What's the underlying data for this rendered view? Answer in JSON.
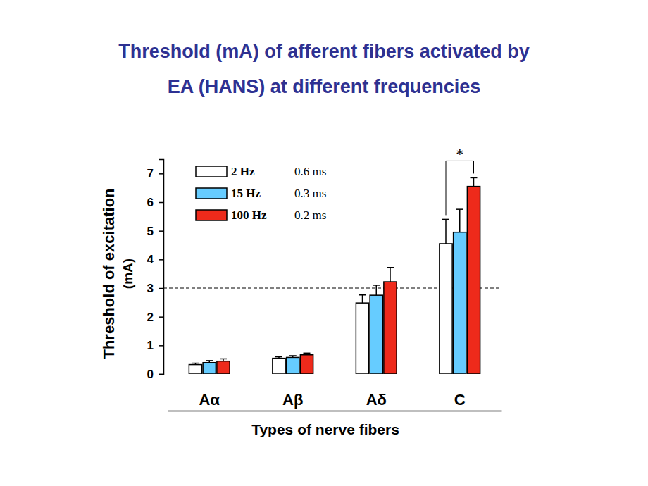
{
  "chart_data": {
    "type": "bar",
    "title": [
      "Threshold (mA) of afferent fibers activated by",
      "EA (HANS) at different frequencies"
    ],
    "x_label": "Types of nerve fibers",
    "y_label": [
      "Threshold of excitation",
      "(mA)"
    ],
    "categories": [
      "Aα",
      "Aβ",
      "Aδ",
      "C"
    ],
    "series": [
      {
        "name": "2 Hz",
        "pulse_width": "0.6 ms",
        "color": "#ffffff",
        "values": [
          0.33,
          0.55,
          2.48,
          4.55
        ],
        "errors": [
          0.05,
          0.05,
          0.28,
          0.85
        ]
      },
      {
        "name": "15 Hz",
        "pulse_width": "0.3 ms",
        "color": "#66ccff",
        "values": [
          0.4,
          0.58,
          2.75,
          4.95
        ],
        "errors": [
          0.07,
          0.06,
          0.35,
          0.8
        ]
      },
      {
        "name": "100 Hz",
        "pulse_width": "0.2 ms",
        "color": "#ee2a1b",
        "values": [
          0.45,
          0.67,
          3.22,
          6.55
        ],
        "errors": [
          0.08,
          0.06,
          0.5,
          0.3
        ]
      }
    ],
    "ylim": [
      0,
      7.5
    ],
    "yticks": [
      0,
      1,
      2,
      3,
      4,
      5,
      6,
      7
    ],
    "reference_line": {
      "value": 3,
      "line_style": "dashed"
    },
    "significance": [
      {
        "category": "C",
        "from": "2 Hz",
        "to": "100 Hz",
        "label": "*"
      }
    ],
    "legend": "upper left"
  }
}
